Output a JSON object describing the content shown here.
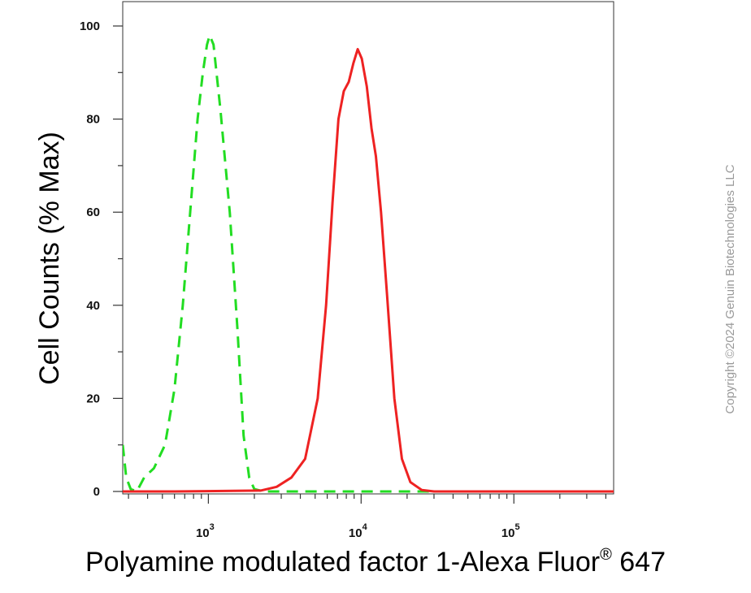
{
  "chart_data": {
    "type": "line",
    "xlabel_main": "Polyamine modulated factor 1-Alexa Fluor",
    "xlabel_reg": "®",
    "xlabel_tail": " 647",
    "ylabel": "Cell Counts (% Max)",
    "x_scale": "log",
    "xlim": [
      275,
      450000
    ],
    "ylim": [
      0,
      100
    ],
    "grid": false,
    "y_ticks": [
      0,
      20,
      40,
      60,
      80,
      100
    ],
    "x_tick_labels": [
      {
        "base": "10",
        "exp": "3",
        "value": 1000
      },
      {
        "base": "10",
        "exp": "4",
        "value": 10000
      },
      {
        "base": "10",
        "exp": "5",
        "value": 100000
      }
    ],
    "series": [
      {
        "style": "dashed",
        "color": "#22dd22",
        "points": [
          [
            275,
            10
          ],
          [
            290,
            3
          ],
          [
            310,
            0.5
          ],
          [
            340,
            0
          ],
          [
            380,
            3
          ],
          [
            440,
            5
          ],
          [
            520,
            10
          ],
          [
            600,
            22
          ],
          [
            680,
            40
          ],
          [
            760,
            60
          ],
          [
            850,
            80
          ],
          [
            920,
            90
          ],
          [
            980,
            96
          ],
          [
            1020,
            98
          ],
          [
            1080,
            96
          ],
          [
            1200,
            82
          ],
          [
            1380,
            60
          ],
          [
            1550,
            35
          ],
          [
            1700,
            12
          ],
          [
            1850,
            3
          ],
          [
            2000,
            0.5
          ],
          [
            2300,
            0
          ],
          [
            10000,
            0
          ],
          [
            100000,
            0
          ],
          [
            450000,
            0
          ]
        ]
      },
      {
        "style": "solid",
        "color": "#ee2222",
        "points": [
          [
            275,
            0
          ],
          [
            600,
            0
          ],
          [
            2200,
            0.2
          ],
          [
            2800,
            1
          ],
          [
            3500,
            3
          ],
          [
            4300,
            7
          ],
          [
            5200,
            20
          ],
          [
            5900,
            40
          ],
          [
            6500,
            62
          ],
          [
            7100,
            80
          ],
          [
            7700,
            86
          ],
          [
            8300,
            88
          ],
          [
            8900,
            92
          ],
          [
            9500,
            95
          ],
          [
            10100,
            93
          ],
          [
            10900,
            87
          ],
          [
            11700,
            78
          ],
          [
            12500,
            72
          ],
          [
            13500,
            60
          ],
          [
            14800,
            42
          ],
          [
            16500,
            20
          ],
          [
            18500,
            7
          ],
          [
            21000,
            2
          ],
          [
            25000,
            0.3
          ],
          [
            30000,
            0
          ],
          [
            450000,
            0
          ]
        ]
      }
    ]
  },
  "copyright": "Copyright ©2024 Genuin Biotechnologies LLC"
}
